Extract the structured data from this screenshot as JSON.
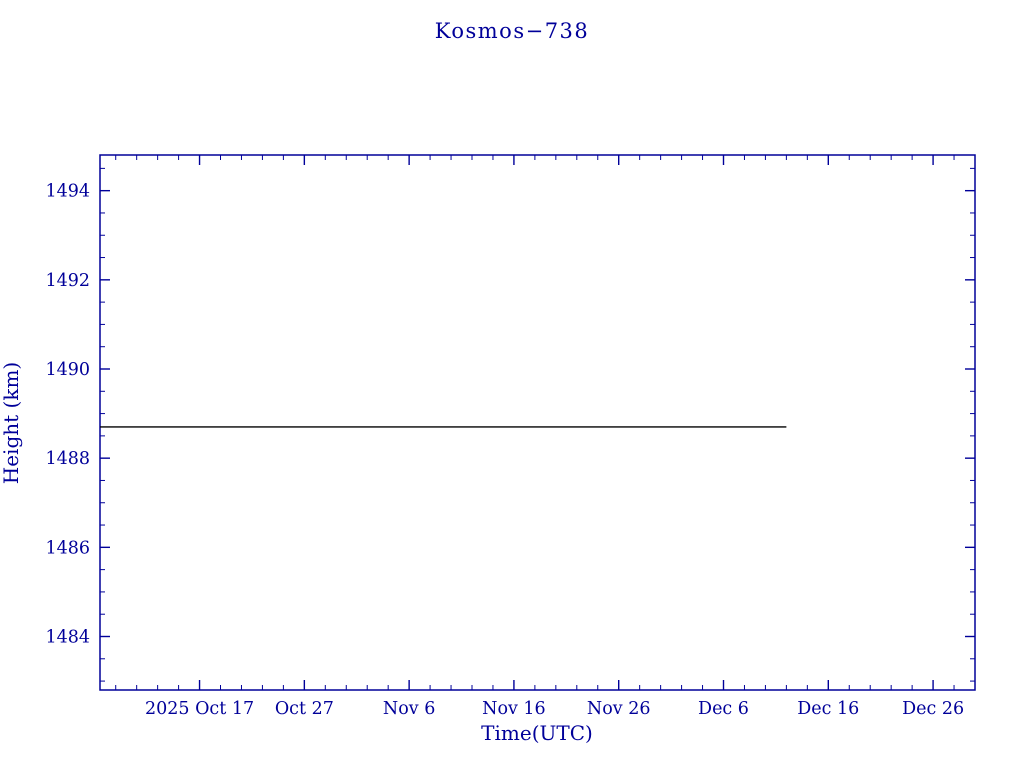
{
  "chart_data": {
    "type": "line",
    "title": "Kosmos−738",
    "xlabel": "Time(UTC)",
    "ylabel": "Height (km)",
    "xlim": [
      0,
      83.5
    ],
    "ylim": [
      1482.8,
      1494.8
    ],
    "x_ticks": [
      {
        "pos": 9.5,
        "label": "2025 Oct 17"
      },
      {
        "pos": 19.5,
        "label": "Oct 27"
      },
      {
        "pos": 29.5,
        "label": "Nov 6"
      },
      {
        "pos": 39.5,
        "label": "Nov 16"
      },
      {
        "pos": 49.5,
        "label": "Nov 26"
      },
      {
        "pos": 59.5,
        "label": "Dec 6"
      },
      {
        "pos": 69.5,
        "label": "Dec 16"
      },
      {
        "pos": 79.5,
        "label": "Dec 26"
      }
    ],
    "x_minor_step": 2,
    "y_ticks": [
      1484,
      1486,
      1488,
      1490,
      1492,
      1494
    ],
    "y_minor_step": 0.5,
    "series": [
      {
        "name": "height",
        "color": "#000000",
        "points": [
          [
            0,
            1488.7
          ],
          [
            65.5,
            1488.7
          ]
        ]
      }
    ],
    "axis_color": "#000099",
    "grid": false,
    "legend": null
  }
}
